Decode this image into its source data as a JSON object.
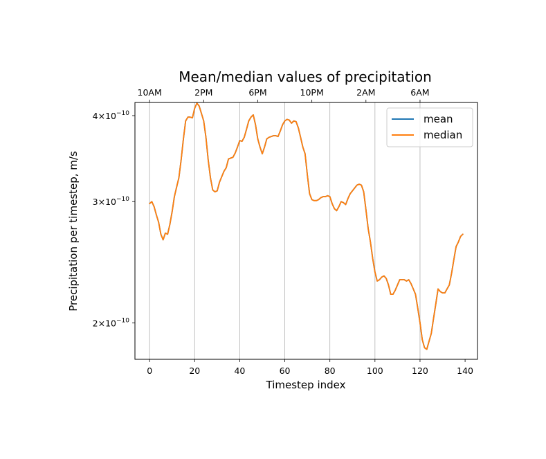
{
  "chart_data": {
    "type": "line",
    "title": "Mean/median values of precipitation",
    "xlabel": "Timestep index",
    "ylabel": "Precipitation per timestep, m/s",
    "yscale": "log",
    "xlim": [
      -6.5,
      145.5
    ],
    "ylim": [
      1.77e-10,
      4.18e-10
    ],
    "grid": "vertical lines at top-axis hour ticks",
    "legend_position": "upper right",
    "x_ticks": [
      0,
      20,
      40,
      60,
      80,
      100,
      120,
      140
    ],
    "y_ticks": [
      {
        "value": 2e-10,
        "mantissa": "2",
        "base": "10",
        "exp": "−10"
      },
      {
        "value": 3e-10,
        "mantissa": "3",
        "base": "10",
        "exp": "−10"
      },
      {
        "value": 4e-10,
        "mantissa": "4",
        "base": "10",
        "exp": "−10"
      }
    ],
    "top_ticks": [
      {
        "x": 0,
        "label": "10AM"
      },
      {
        "x": 24,
        "label": "2PM"
      },
      {
        "x": 48,
        "label": "6PM"
      },
      {
        "x": 72,
        "label": "10PM"
      },
      {
        "x": 96,
        "label": "2AM"
      },
      {
        "x": 120,
        "label": "6AM"
      }
    ],
    "grid_x": [
      0,
      20,
      40,
      60,
      80,
      100,
      120
    ],
    "series": [
      {
        "name": "mean",
        "color": "#1f77b4",
        "x": [
          0,
          1,
          2,
          3,
          4,
          5,
          6,
          7,
          8,
          9,
          10,
          11,
          12,
          13,
          14,
          15,
          16,
          17,
          18,
          19,
          20,
          21,
          22,
          23,
          24,
          25,
          26,
          27,
          28,
          29,
          30,
          31,
          32,
          33,
          34,
          35,
          36,
          37,
          38,
          39,
          40,
          41,
          42,
          43,
          44,
          45,
          46,
          47,
          48,
          49,
          50,
          51,
          52,
          53,
          54,
          55,
          56,
          57,
          58,
          59,
          60,
          61,
          62,
          63,
          64,
          65,
          66,
          67,
          68,
          69,
          70,
          71,
          72,
          73,
          74,
          75,
          76,
          77,
          78,
          79,
          80,
          81,
          82,
          83,
          84,
          85,
          86,
          87,
          88,
          89,
          90,
          91,
          92,
          93,
          94,
          95,
          96,
          97,
          98,
          99,
          100,
          101,
          102,
          103,
          104,
          105,
          106,
          107,
          108,
          109,
          110,
          111,
          112,
          113,
          114,
          115,
          116,
          117,
          118,
          119,
          120,
          121,
          122,
          123,
          124,
          125,
          126,
          127,
          128,
          129,
          130,
          131,
          132,
          133,
          134,
          135,
          136,
          137,
          138,
          139
        ],
        "y": [
          2.98e-10,
          3e-10,
          2.95e-10,
          2.87e-10,
          2.8e-10,
          2.69e-10,
          2.64e-10,
          2.7e-10,
          2.69e-10,
          2.78e-10,
          2.9e-10,
          3.05e-10,
          3.15e-10,
          3.25e-10,
          3.45e-10,
          3.7e-10,
          3.93e-10,
          3.98e-10,
          3.98e-10,
          3.97e-10,
          4.1e-10,
          4.17e-10,
          4.13e-10,
          4.03e-10,
          3.93e-10,
          3.72e-10,
          3.45e-10,
          3.25e-10,
          3.12e-10,
          3.1e-10,
          3.11e-10,
          3.2e-10,
          3.26e-10,
          3.32e-10,
          3.36e-10,
          3.46e-10,
          3.47e-10,
          3.48e-10,
          3.53e-10,
          3.6e-10,
          3.68e-10,
          3.67e-10,
          3.72e-10,
          3.82e-10,
          3.93e-10,
          3.98e-10,
          4.01e-10,
          3.88e-10,
          3.7e-10,
          3.6e-10,
          3.52e-10,
          3.6e-10,
          3.7e-10,
          3.72e-10,
          3.73e-10,
          3.74e-10,
          3.74e-10,
          3.73e-10,
          3.8e-10,
          3.88e-10,
          3.93e-10,
          3.95e-10,
          3.94e-10,
          3.9e-10,
          3.93e-10,
          3.92e-10,
          3.84e-10,
          3.72e-10,
          3.6e-10,
          3.52e-10,
          3.28e-10,
          3.08e-10,
          3.02e-10,
          3.01e-10,
          3.01e-10,
          3.02e-10,
          3.04e-10,
          3.05e-10,
          3.05e-10,
          3.06e-10,
          3.05e-10,
          2.98e-10,
          2.93e-10,
          2.91e-10,
          2.95e-10,
          3e-10,
          2.99e-10,
          2.97e-10,
          3.03e-10,
          3.08e-10,
          3.11e-10,
          3.14e-10,
          3.17e-10,
          3.18e-10,
          3.17e-10,
          3.1e-10,
          2.92e-10,
          2.74e-10,
          2.62e-10,
          2.48e-10,
          2.37e-10,
          2.3e-10,
          2.31e-10,
          2.33e-10,
          2.34e-10,
          2.32e-10,
          2.27e-10,
          2.2e-10,
          2.2e-10,
          2.23e-10,
          2.27e-10,
          2.31e-10,
          2.31e-10,
          2.31e-10,
          2.3e-10,
          2.31e-10,
          2.28e-10,
          2.24e-10,
          2.2e-10,
          2.1e-10,
          2e-10,
          1.89e-10,
          1.84e-10,
          1.83e-10,
          1.88e-10,
          1.93e-10,
          2.03e-10,
          2.13e-10,
          2.24e-10,
          2.22e-10,
          2.21e-10,
          2.21e-10,
          2.24e-10,
          2.27e-10,
          2.36e-10,
          2.47e-10,
          2.58e-10,
          2.62e-10,
          2.67e-10,
          2.69e-10
        ]
      },
      {
        "name": "median",
        "color": "#ff7f0e",
        "x": [
          0,
          1,
          2,
          3,
          4,
          5,
          6,
          7,
          8,
          9,
          10,
          11,
          12,
          13,
          14,
          15,
          16,
          17,
          18,
          19,
          20,
          21,
          22,
          23,
          24,
          25,
          26,
          27,
          28,
          29,
          30,
          31,
          32,
          33,
          34,
          35,
          36,
          37,
          38,
          39,
          40,
          41,
          42,
          43,
          44,
          45,
          46,
          47,
          48,
          49,
          50,
          51,
          52,
          53,
          54,
          55,
          56,
          57,
          58,
          59,
          60,
          61,
          62,
          63,
          64,
          65,
          66,
          67,
          68,
          69,
          70,
          71,
          72,
          73,
          74,
          75,
          76,
          77,
          78,
          79,
          80,
          81,
          82,
          83,
          84,
          85,
          86,
          87,
          88,
          89,
          90,
          91,
          92,
          93,
          94,
          95,
          96,
          97,
          98,
          99,
          100,
          101,
          102,
          103,
          104,
          105,
          106,
          107,
          108,
          109,
          110,
          111,
          112,
          113,
          114,
          115,
          116,
          117,
          118,
          119,
          120,
          121,
          122,
          123,
          124,
          125,
          126,
          127,
          128,
          129,
          130,
          131,
          132,
          133,
          134,
          135,
          136,
          137,
          138,
          139
        ],
        "y": [
          2.98e-10,
          3e-10,
          2.95e-10,
          2.87e-10,
          2.8e-10,
          2.69e-10,
          2.64e-10,
          2.7e-10,
          2.69e-10,
          2.78e-10,
          2.9e-10,
          3.05e-10,
          3.15e-10,
          3.25e-10,
          3.45e-10,
          3.7e-10,
          3.93e-10,
          3.98e-10,
          3.98e-10,
          3.97e-10,
          4.1e-10,
          4.17e-10,
          4.13e-10,
          4.03e-10,
          3.93e-10,
          3.72e-10,
          3.45e-10,
          3.25e-10,
          3.12e-10,
          3.1e-10,
          3.11e-10,
          3.2e-10,
          3.26e-10,
          3.32e-10,
          3.36e-10,
          3.46e-10,
          3.47e-10,
          3.48e-10,
          3.53e-10,
          3.6e-10,
          3.68e-10,
          3.67e-10,
          3.72e-10,
          3.82e-10,
          3.93e-10,
          3.98e-10,
          4.01e-10,
          3.88e-10,
          3.7e-10,
          3.6e-10,
          3.52e-10,
          3.6e-10,
          3.7e-10,
          3.72e-10,
          3.73e-10,
          3.74e-10,
          3.74e-10,
          3.73e-10,
          3.8e-10,
          3.88e-10,
          3.93e-10,
          3.95e-10,
          3.94e-10,
          3.9e-10,
          3.93e-10,
          3.92e-10,
          3.84e-10,
          3.72e-10,
          3.6e-10,
          3.52e-10,
          3.28e-10,
          3.08e-10,
          3.02e-10,
          3.01e-10,
          3.01e-10,
          3.02e-10,
          3.04e-10,
          3.05e-10,
          3.05e-10,
          3.06e-10,
          3.05e-10,
          2.98e-10,
          2.93e-10,
          2.91e-10,
          2.95e-10,
          3e-10,
          2.99e-10,
          2.97e-10,
          3.03e-10,
          3.08e-10,
          3.11e-10,
          3.14e-10,
          3.17e-10,
          3.18e-10,
          3.17e-10,
          3.1e-10,
          2.92e-10,
          2.74e-10,
          2.62e-10,
          2.48e-10,
          2.37e-10,
          2.3e-10,
          2.31e-10,
          2.33e-10,
          2.34e-10,
          2.32e-10,
          2.27e-10,
          2.2e-10,
          2.2e-10,
          2.23e-10,
          2.27e-10,
          2.31e-10,
          2.31e-10,
          2.31e-10,
          2.3e-10,
          2.31e-10,
          2.28e-10,
          2.24e-10,
          2.2e-10,
          2.1e-10,
          2e-10,
          1.89e-10,
          1.84e-10,
          1.83e-10,
          1.88e-10,
          1.93e-10,
          2.03e-10,
          2.13e-10,
          2.24e-10,
          2.22e-10,
          2.21e-10,
          2.21e-10,
          2.24e-10,
          2.27e-10,
          2.36e-10,
          2.47e-10,
          2.58e-10,
          2.62e-10,
          2.67e-10,
          2.69e-10
        ]
      }
    ]
  }
}
